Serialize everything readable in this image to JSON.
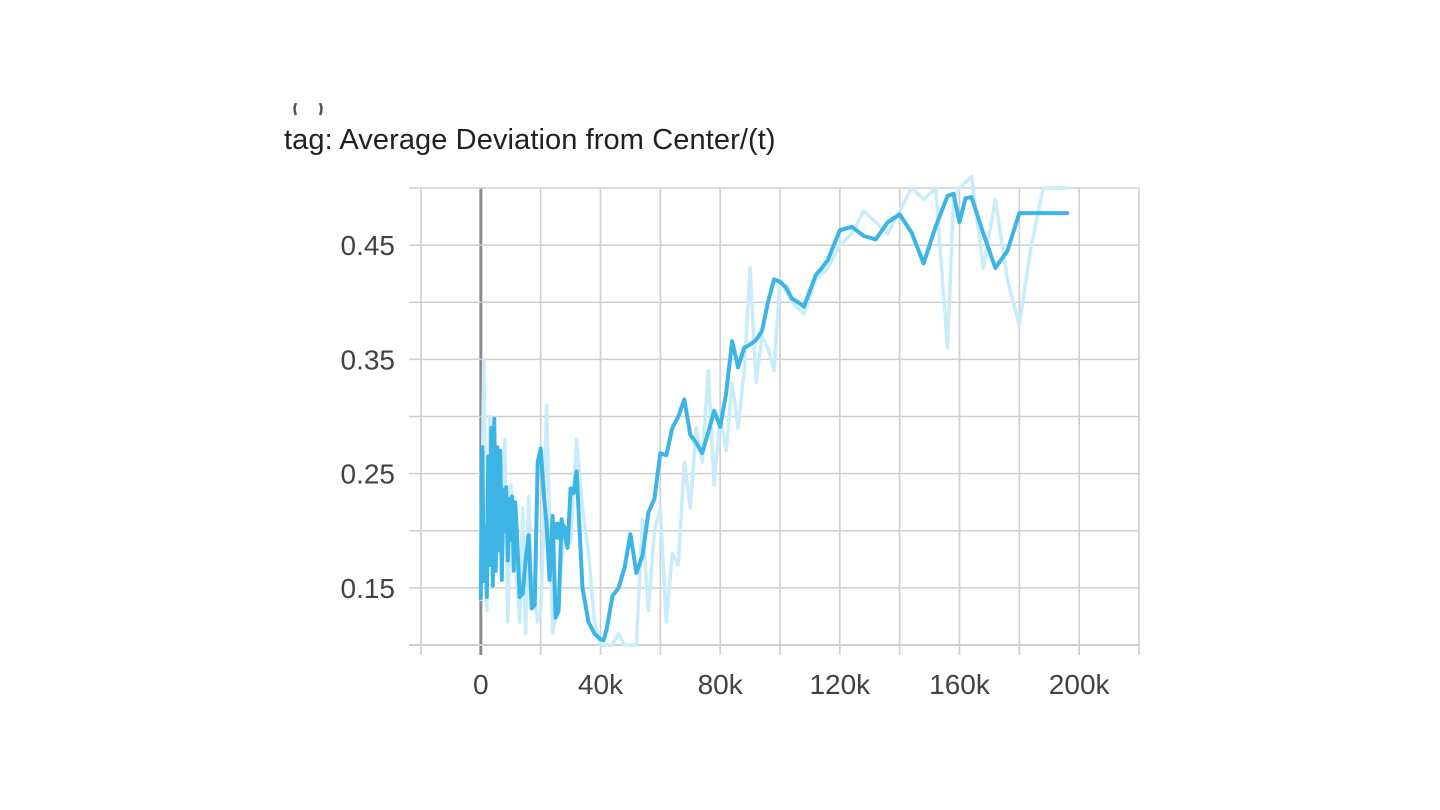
{
  "chart_data": {
    "type": "line",
    "title": "tag: Average Deviation from Center/(t)",
    "xlabel": "",
    "ylabel": "",
    "xlim": [
      -20000,
      220000
    ],
    "ylim": [
      0.1,
      0.5
    ],
    "x_ticks": [
      0,
      40000,
      80000,
      120000,
      160000,
      200000
    ],
    "x_tick_labels": [
      "0",
      "40k",
      "80k",
      "120k",
      "160k",
      "200k"
    ],
    "x_minor_ticks": [
      -20000,
      20000,
      60000,
      100000,
      140000,
      180000,
      220000
    ],
    "y_ticks": [
      0.15,
      0.25,
      0.35,
      0.45
    ],
    "y_tick_labels": [
      "0.15",
      "0.25",
      "0.35",
      "0.45"
    ],
    "y_minor_ticks": [
      0.1,
      0.2,
      0.3,
      0.4,
      0.5
    ],
    "grid": true,
    "colors": {
      "smoothed": "#3cb4e6",
      "raw": "#c9ecfa",
      "grid": "#cfcfcf",
      "zero_axis": "#8a8a8a",
      "text": "#424242"
    },
    "series": [
      {
        "role": "raw",
        "x": [
          0,
          1000,
          2000,
          3000,
          4000,
          5000,
          6000,
          7000,
          8000,
          9000,
          10000,
          11000,
          12000,
          13000,
          14000,
          15000,
          16000,
          17000,
          18000,
          19000,
          20000,
          21000,
          22000,
          24000,
          26000,
          28000,
          30000,
          32000,
          34000,
          36000,
          38000,
          40000,
          42000,
          44000,
          46000,
          48000,
          50000,
          52000,
          54000,
          56000,
          58000,
          60000,
          62000,
          64000,
          66000,
          68000,
          70000,
          72000,
          74000,
          76000,
          78000,
          80000,
          82000,
          84000,
          86000,
          88000,
          90000,
          92000,
          94000,
          96000,
          98000,
          100000,
          104000,
          108000,
          112000,
          116000,
          120000,
          124000,
          128000,
          132000,
          136000,
          140000,
          144000,
          148000,
          152000,
          156000,
          158000,
          160000,
          164000,
          168000,
          172000,
          176000,
          180000,
          184000,
          188000,
          192000,
          196000
        ],
        "y": [
          0.14,
          0.35,
          0.13,
          0.3,
          0.2,
          0.18,
          0.26,
          0.16,
          0.28,
          0.12,
          0.24,
          0.19,
          0.16,
          0.12,
          0.22,
          0.11,
          0.23,
          0.15,
          0.14,
          0.12,
          0.13,
          0.2,
          0.31,
          0.11,
          0.14,
          0.2,
          0.19,
          0.28,
          0.22,
          0.18,
          0.12,
          0.1,
          0.1,
          0.1,
          0.11,
          0.1,
          0.1,
          0.1,
          0.21,
          0.13,
          0.2,
          0.22,
          0.12,
          0.18,
          0.17,
          0.26,
          0.22,
          0.29,
          0.26,
          0.34,
          0.24,
          0.3,
          0.27,
          0.33,
          0.29,
          0.34,
          0.43,
          0.33,
          0.37,
          0.36,
          0.34,
          0.42,
          0.4,
          0.39,
          0.42,
          0.43,
          0.45,
          0.46,
          0.48,
          0.47,
          0.46,
          0.48,
          0.5,
          0.49,
          0.5,
          0.36,
          0.49,
          0.5,
          0.51,
          0.43,
          0.49,
          0.42,
          0.38,
          0.45,
          0.5,
          0.5,
          0.5
        ]
      },
      {
        "role": "smoothed",
        "x": [
          0,
          500,
          1000,
          1500,
          2000,
          2500,
          3000,
          3500,
          4000,
          4500,
          5000,
          5500,
          6000,
          6500,
          7000,
          7500,
          8000,
          8500,
          9000,
          9500,
          10000,
          10500,
          11000,
          11500,
          12000,
          13000,
          14000,
          15000,
          16000,
          17000,
          18000,
          19000,
          20000,
          21000,
          22000,
          23000,
          24000,
          25000,
          26000,
          27000,
          28000,
          29000,
          30000,
          31000,
          32000,
          34000,
          36000,
          38000,
          40000,
          41000,
          42000,
          44000,
          46000,
          48000,
          50000,
          52000,
          54000,
          56000,
          58000,
          60000,
          62000,
          64000,
          66000,
          68000,
          70000,
          72000,
          74000,
          76000,
          78000,
          80000,
          82000,
          84000,
          86000,
          88000,
          90000,
          92000,
          94000,
          96000,
          98000,
          100000,
          102000,
          104000,
          106000,
          108000,
          110000,
          112000,
          114000,
          116000,
          118000,
          120000,
          124000,
          128000,
          132000,
          136000,
          140000,
          144000,
          148000,
          152000,
          156000,
          158000,
          160000,
          162000,
          164000,
          168000,
          172000,
          176000,
          180000,
          184000,
          188000,
          192000,
          196000
        ],
        "y": [
          0.141,
          0.273,
          0.156,
          0.203,
          0.142,
          0.265,
          0.17,
          0.29,
          0.152,
          0.298,
          0.165,
          0.273,
          0.183,
          0.27,
          0.157,
          0.236,
          0.2,
          0.238,
          0.174,
          0.228,
          0.192,
          0.23,
          0.165,
          0.225,
          0.202,
          0.142,
          0.145,
          0.175,
          0.196,
          0.132,
          0.135,
          0.26,
          0.272,
          0.233,
          0.205,
          0.157,
          0.213,
          0.124,
          0.13,
          0.21,
          0.196,
          0.185,
          0.237,
          0.233,
          0.252,
          0.15,
          0.12,
          0.11,
          0.105,
          0.104,
          0.113,
          0.143,
          0.15,
          0.167,
          0.197,
          0.163,
          0.178,
          0.216,
          0.228,
          0.268,
          0.266,
          0.29,
          0.3,
          0.315,
          0.284,
          0.277,
          0.268,
          0.286,
          0.305,
          0.291,
          0.32,
          0.366,
          0.343,
          0.36,
          0.363,
          0.367,
          0.375,
          0.4,
          0.42,
          0.418,
          0.413,
          0.403,
          0.4,
          0.396,
          0.41,
          0.424,
          0.43,
          0.437,
          0.45,
          0.463,
          0.466,
          0.458,
          0.455,
          0.47,
          0.477,
          0.461,
          0.434,
          0.466,
          0.493,
          0.495,
          0.47,
          0.491,
          0.492,
          0.46,
          0.43,
          0.445,
          0.478,
          0.478,
          0.478,
          0.478,
          0.478
        ]
      }
    ],
    "marker": {
      "x": 26000,
      "y": 0.2
    }
  }
}
